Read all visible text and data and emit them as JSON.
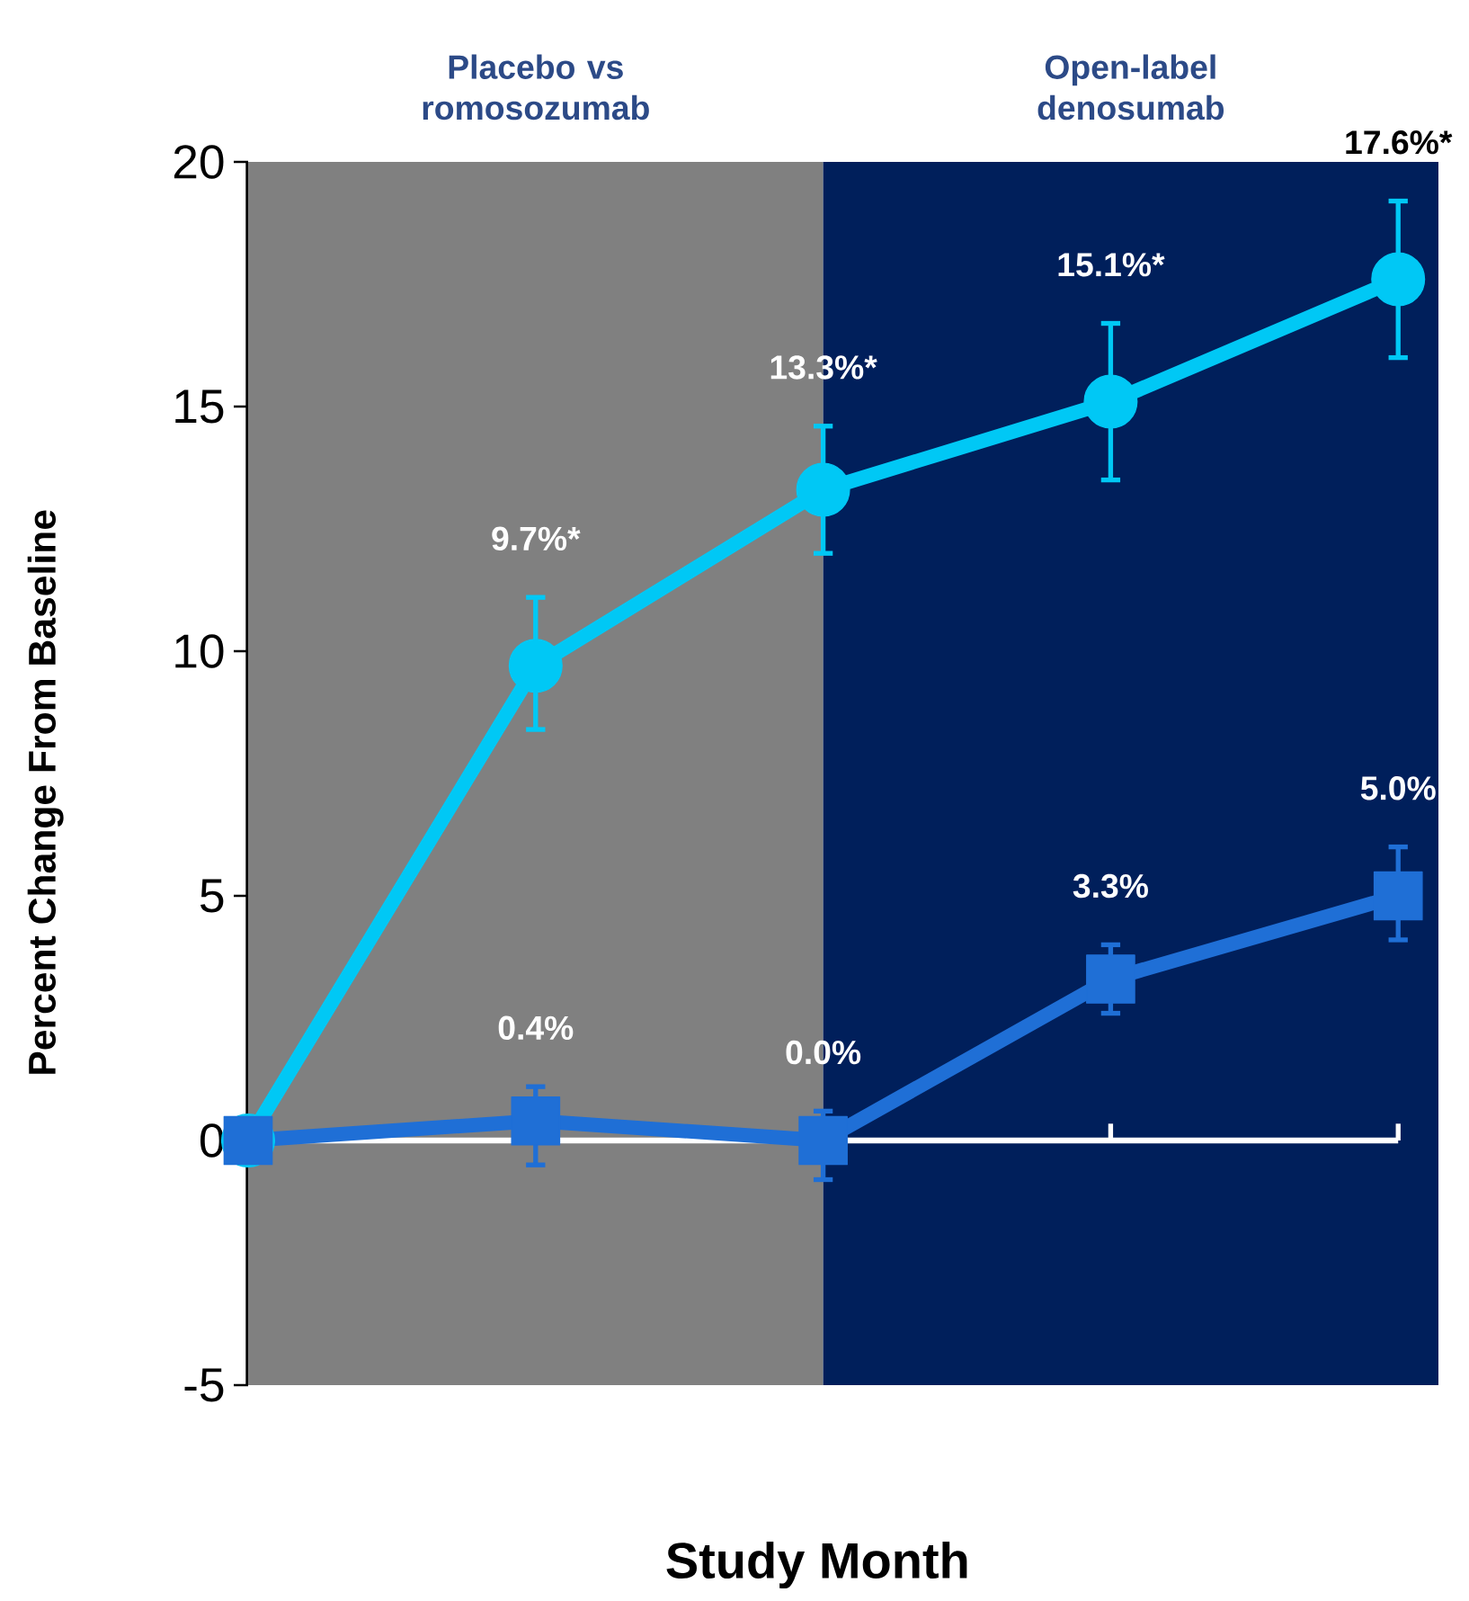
{
  "chart_data": {
    "type": "line",
    "xlabel": "Study Month",
    "ylabel": "Percent Change From Baseline",
    "categories": [
      null,
      null,
      null,
      null,
      null
    ],
    "series": [
      {
        "color": "#00c8f5",
        "marker": "circle",
        "values": [
          0,
          9.7,
          13.3,
          15.1,
          17.6
        ],
        "errors": [
          null,
          [
            8.4,
            11.1
          ],
          [
            12.0,
            14.6
          ],
          [
            13.5,
            16.7
          ],
          [
            16.0,
            19.2
          ]
        ],
        "value_labels": [
          null,
          "9.7%*",
          "13.3%*",
          "15.1%*",
          "17.6%*"
        ]
      },
      {
        "color": "#1f6fd6",
        "marker": "square",
        "values": [
          0,
          0.4,
          0.0,
          3.3,
          5.0
        ],
        "errors": [
          null,
          [
            -0.5,
            1.1
          ],
          [
            -0.8,
            0.6
          ],
          [
            2.6,
            4.0
          ],
          [
            4.1,
            6.0
          ]
        ],
        "value_labels": [
          null,
          "0.4%",
          "0.0%",
          "3.3%",
          "5.0%"
        ]
      }
    ],
    "annotations": [
      "Placebo vs romosozumab",
      "Open-label denosumab"
    ],
    "ylim": [
      -5,
      20
    ],
    "yticks": [
      -5,
      0,
      5,
      10,
      15,
      20
    ],
    "tick_labels": "y"
  }
}
